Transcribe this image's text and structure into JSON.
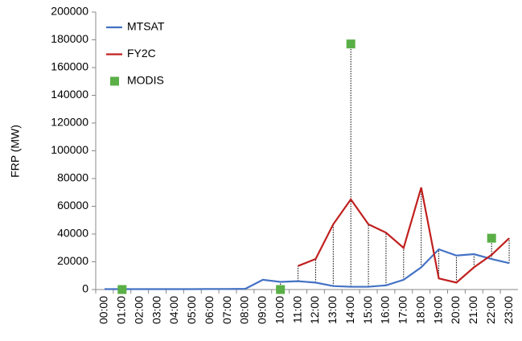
{
  "chart_data": {
    "type": "line",
    "y_label": "FRP (MW)",
    "categories": [
      "00:00",
      "01:00",
      "02:00",
      "03:00",
      "04:00",
      "05:00",
      "06:00",
      "07:00",
      "08:00",
      "09:00",
      "10:00",
      "11:00",
      "12:00",
      "13:00",
      "14:00",
      "15:00",
      "16:00",
      "17:00",
      "18:00",
      "19:00",
      "20:00",
      "21:00",
      "22:00",
      "23:00"
    ],
    "series": [
      {
        "name": "MTSAT",
        "color": "#4472c4",
        "kind": "line",
        "values": [
          300,
          300,
          300,
          300,
          300,
          300,
          400,
          400,
          500,
          7000,
          5500,
          6000,
          5000,
          2500,
          2000,
          2000,
          3000,
          7000,
          16000,
          29000,
          24500,
          25500,
          22000,
          19000
        ]
      },
      {
        "name": "FY2C",
        "color": "#c0201f",
        "kind": "line",
        "values": [
          null,
          null,
          null,
          null,
          null,
          null,
          null,
          null,
          null,
          null,
          null,
          17000,
          22000,
          47000,
          65000,
          47000,
          41000,
          30000,
          73500,
          8000,
          5000,
          16000,
          25000,
          37000
        ]
      },
      {
        "name": "MODIS",
        "color": "#5aaf47",
        "kind": "marker",
        "values": [
          null,
          0,
          null,
          null,
          null,
          null,
          null,
          null,
          null,
          null,
          0,
          null,
          null,
          null,
          177000,
          null,
          null,
          null,
          null,
          null,
          null,
          null,
          37000,
          null
        ]
      }
    ],
    "ylim": [
      0,
      200000
    ],
    "yticks": [
      0,
      20000,
      40000,
      60000,
      80000,
      100000,
      120000,
      140000,
      160000,
      180000,
      200000
    ],
    "legend": "upper-left"
  }
}
